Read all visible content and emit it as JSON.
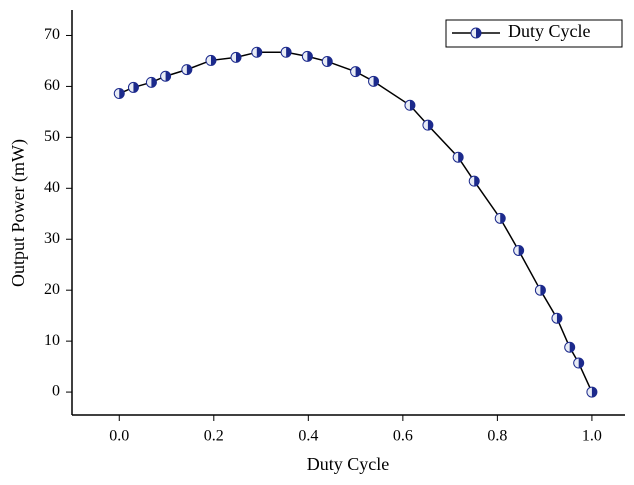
{
  "chart_data": {
    "type": "line",
    "x_label": "Duty Cycle",
    "y_label": "Output Power (mW)",
    "x": [
      0.0,
      0.03,
      0.068,
      0.098,
      0.143,
      0.194,
      0.247,
      0.291,
      0.353,
      0.398,
      0.44,
      0.5,
      0.538,
      0.615,
      0.653,
      0.717,
      0.751,
      0.806,
      0.845,
      0.891,
      0.926,
      0.953,
      0.972,
      1.0
    ],
    "series": [
      {
        "name": "Duty Cycle",
        "color": "#000000",
        "marker_color": "#1c2a8c",
        "values": [
          58.6,
          59.8,
          60.8,
          62,
          63.3,
          65.1,
          65.7,
          66.7,
          66.7,
          65.9,
          64.9,
          62.9,
          61,
          56.3,
          52.4,
          46.1,
          41.4,
          34.1,
          27.8,
          20,
          14.5,
          8.8,
          5.7,
          0
        ]
      }
    ],
    "xlim": [
      -0.1,
      1.07
    ],
    "ylim": [
      -4.5,
      75
    ],
    "xticks": [
      {
        "value": 0,
        "label": "0.0"
      },
      0.2,
      0.4,
      0.6,
      0.8,
      {
        "value": 1,
        "label": "1.0"
      }
    ],
    "yticks": [
      0,
      10,
      20,
      30,
      40,
      50,
      60,
      70
    ],
    "legend": "top-right"
  }
}
